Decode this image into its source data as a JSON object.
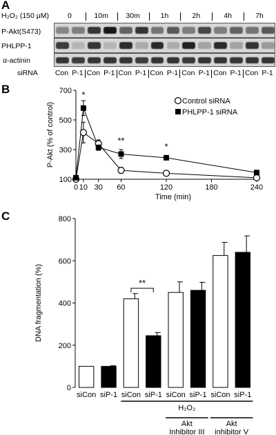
{
  "panelA": {
    "letter": "A",
    "treatment_label": "H₂O₂ (150 μM)",
    "timepoints": [
      "0",
      "10m",
      "30m",
      "1h",
      "2h",
      "4h",
      "7h"
    ],
    "rows": [
      "P-Akt(S473)",
      "PHLPP-1",
      "α-actinin"
    ],
    "sirna_label": "siRNA",
    "lane_labels": [
      "Con",
      "P-1",
      "Con",
      "P-1",
      "Con",
      "P-1",
      "Con",
      "P-1",
      "Con",
      "P-1",
      "Con",
      "P-1",
      "Con",
      "P-1"
    ],
    "band_intensity": {
      "p_akt": [
        0.35,
        0.4,
        0.8,
        0.95,
        0.55,
        0.8,
        0.45,
        0.6,
        0.4,
        0.7,
        0.4,
        0.55,
        0.45,
        0.6
      ],
      "phlpp1": [
        0.75,
        0.1,
        0.8,
        0.1,
        0.85,
        0.15,
        0.85,
        0.15,
        0.9,
        0.2,
        0.85,
        0.2,
        0.8,
        0.25
      ],
      "actinin": [
        0.8,
        0.75,
        0.8,
        0.8,
        0.8,
        0.75,
        0.8,
        0.8,
        0.78,
        0.8,
        0.8,
        0.78,
        0.8,
        0.8
      ]
    }
  },
  "panelB": {
    "letter": "B",
    "chart_data": {
      "type": "line",
      "ylabel": "P-Akt (% of control)",
      "xlabel": "Time (min)",
      "xlim": [
        0,
        240
      ],
      "ylim": [
        100,
        700
      ],
      "xticks": [
        0,
        10,
        30,
        60,
        120,
        180,
        240
      ],
      "yticks": [
        100,
        300,
        500,
        700
      ],
      "legend_position": "top-right",
      "series": [
        {
          "name": "Control siRNA",
          "marker": "open-circle",
          "x": [
            0,
            10,
            30,
            60,
            120,
            240
          ],
          "y": [
            100,
            415,
            340,
            160,
            140,
            110
          ],
          "err": [
            10,
            70,
            25,
            20,
            10,
            10
          ]
        },
        {
          "name": "PHLPP-1 siRNA",
          "marker": "filled-square",
          "x": [
            0,
            10,
            30,
            60,
            120,
            240
          ],
          "y": [
            110,
            580,
            315,
            270,
            245,
            145
          ],
          "err": [
            10,
            50,
            20,
            30,
            15,
            15
          ]
        }
      ],
      "annotations": [
        {
          "x": 10,
          "text": "*"
        },
        {
          "x": 60,
          "text": "**"
        },
        {
          "x": 120,
          "text": "*"
        }
      ]
    }
  },
  "panelC": {
    "letter": "C",
    "chart_data": {
      "type": "bar",
      "ylabel": "DNA fragmentation (%)",
      "ylim": [
        0,
        800
      ],
      "yticks": [
        0,
        200,
        400,
        600,
        800
      ],
      "categories": [
        "siCon",
        "siP-1",
        "siCon",
        "siP-1",
        "siCon",
        "siP-1",
        "siCon",
        "siP-1"
      ],
      "values": [
        100,
        100,
        420,
        245,
        450,
        460,
        625,
        640
      ],
      "errors": [
        0,
        3,
        25,
        15,
        50,
        38,
        62,
        78
      ],
      "fills": [
        "open",
        "filled",
        "open",
        "filled",
        "open",
        "filled",
        "open",
        "filled"
      ],
      "significance": {
        "between": [
          2,
          3
        ],
        "text": "**"
      },
      "groups": [
        {
          "label": "H₂O₂",
          "from": 2,
          "to": 7
        },
        {
          "label": "Akt Inhibitor III",
          "from": 4,
          "to": 5
        },
        {
          "label": "Akt inhibitor V",
          "from": 6,
          "to": 7
        }
      ]
    }
  }
}
